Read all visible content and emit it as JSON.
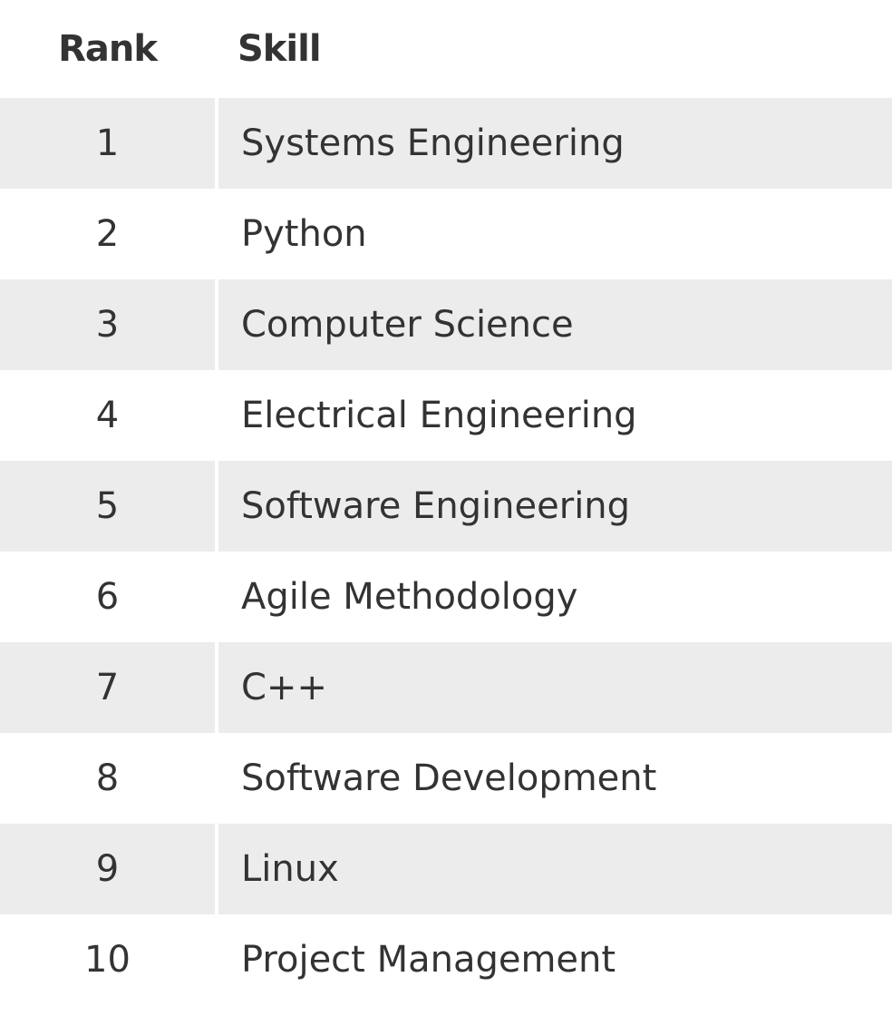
{
  "table": {
    "headers": {
      "rank": "Rank",
      "skill": "Skill"
    },
    "rows": [
      {
        "rank": "1",
        "skill": "Systems Engineering"
      },
      {
        "rank": "2",
        "skill": "Python"
      },
      {
        "rank": "3",
        "skill": "Computer Science"
      },
      {
        "rank": "4",
        "skill": "Electrical Engineering"
      },
      {
        "rank": "5",
        "skill": "Software Engineering"
      },
      {
        "rank": "6",
        "skill": "Agile Methodology"
      },
      {
        "rank": "7",
        "skill": "C++"
      },
      {
        "rank": "8",
        "skill": "Software Development"
      },
      {
        "rank": "9",
        "skill": "Linux"
      },
      {
        "rank": "10",
        "skill": "Project Management"
      }
    ]
  },
  "colors": {
    "text": "#333333",
    "stripe": "#ececec",
    "background": "#ffffff"
  }
}
